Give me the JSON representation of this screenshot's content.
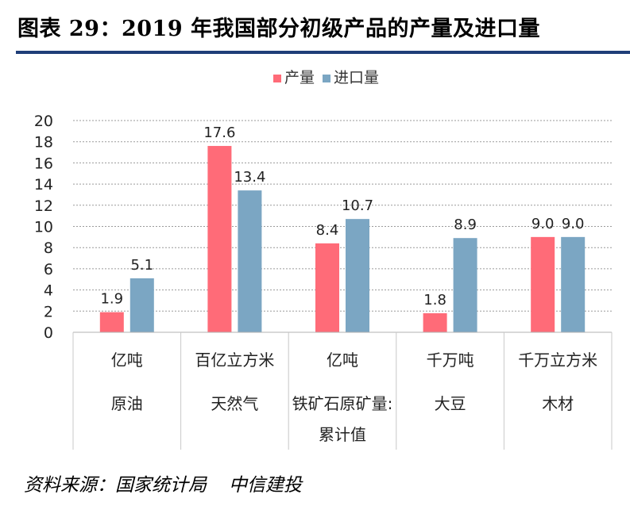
{
  "figure": {
    "title": "图表 29：2019 年我国部分初级产品的产量及进口量",
    "source_label": "资料来源：国家统计局",
    "source_org": "中信建投"
  },
  "colors": {
    "production": "#ff6b78",
    "import": "#7ba6c3",
    "title_rule": "#1f3e78",
    "grid": "#9a9a9a"
  },
  "chart_data": {
    "type": "bar",
    "title": "",
    "ylabel": "",
    "ylim": [
      0,
      20
    ],
    "yticks": [
      0,
      2,
      4,
      6,
      8,
      10,
      12,
      14,
      16,
      18,
      20
    ],
    "grid": true,
    "legend_position": "top",
    "categories": [
      {
        "unit": "亿吨",
        "name": [
          "原油"
        ]
      },
      {
        "unit": "百亿立方米",
        "name": [
          "天然气"
        ]
      },
      {
        "unit": "亿吨",
        "name": [
          "铁矿石原矿量:",
          "累计值"
        ]
      },
      {
        "unit": "千万吨",
        "name": [
          "大豆"
        ]
      },
      {
        "unit": "千万立方米",
        "name": [
          "木材"
        ]
      }
    ],
    "series": [
      {
        "name": "产量",
        "color": "#ff6b78",
        "values": [
          1.9,
          17.6,
          8.4,
          1.8,
          9.0
        ],
        "labels": [
          "1.9",
          "17.6",
          "8.4",
          "1.8",
          "9.0"
        ]
      },
      {
        "name": "进口量",
        "color": "#7ba6c3",
        "values": [
          5.1,
          13.4,
          10.7,
          8.9,
          9.0
        ],
        "labels": [
          "5.1",
          "13.4",
          "10.7",
          "8.9",
          "9.0"
        ]
      }
    ]
  }
}
